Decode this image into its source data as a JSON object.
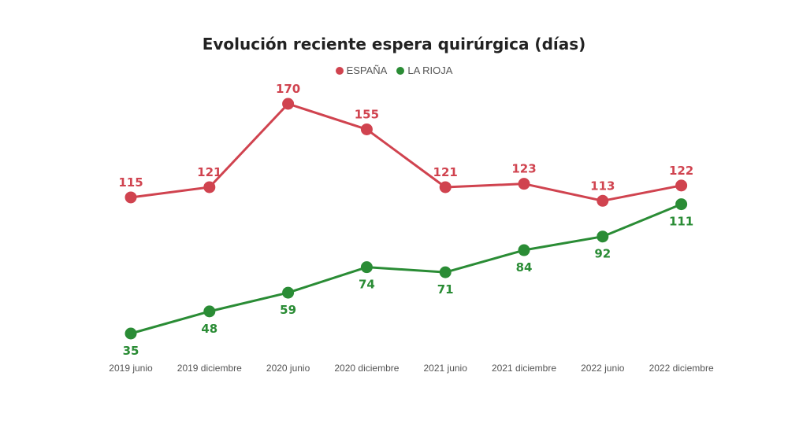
{
  "chart_data": {
    "type": "line",
    "title": "Evolución reciente espera quirúrgica (días)",
    "categories": [
      "2019 junio",
      "2019 diciembre",
      "2020 junio",
      "2020 diciembre",
      "2021 junio",
      "2021 diciembre",
      "2022 junio",
      "2022 diciembre"
    ],
    "series": [
      {
        "name": "ESPAÑA",
        "color": "#d0434f",
        "values": [
          115,
          121,
          170,
          155,
          121,
          123,
          113,
          122
        ],
        "label_position": "above"
      },
      {
        "name": "LA RIOJA",
        "color": "#2a8c35",
        "values": [
          35,
          48,
          59,
          74,
          71,
          84,
          92,
          111
        ],
        "label_position": "below"
      }
    ],
    "xlabel": "",
    "ylabel": "",
    "ylim": [
      35,
      170
    ],
    "grid": false,
    "legend_position": "top-center",
    "data_labels": true
  }
}
